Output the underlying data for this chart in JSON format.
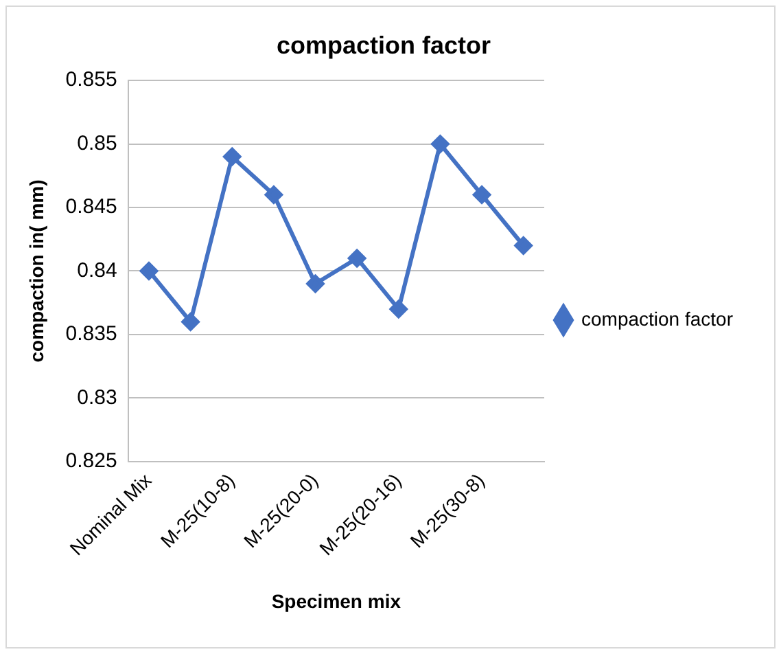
{
  "chart_data": {
    "type": "line",
    "title": "compaction factor",
    "xlabel": "Specimen mix",
    "ylabel": "compaction in( mm)",
    "categories": [
      "Nominal Mix",
      null,
      "M-25(10-8)",
      null,
      "M-25(20-0)",
      null,
      "M-25(20-16)",
      null,
      "M-25(30-8)",
      null
    ],
    "series": [
      {
        "name": "compaction factor",
        "color": "#4472c4",
        "values": [
          0.84,
          0.836,
          0.849,
          0.846,
          0.839,
          0.841,
          0.837,
          0.85,
          0.846,
          0.842
        ]
      }
    ],
    "ylim": [
      0.825,
      0.855
    ],
    "yticks": [
      0.825,
      0.83,
      0.835,
      0.84,
      0.845,
      0.85,
      0.855
    ],
    "grid": "y",
    "legend": "right",
    "marker": "diamond",
    "line_style": "solid"
  }
}
